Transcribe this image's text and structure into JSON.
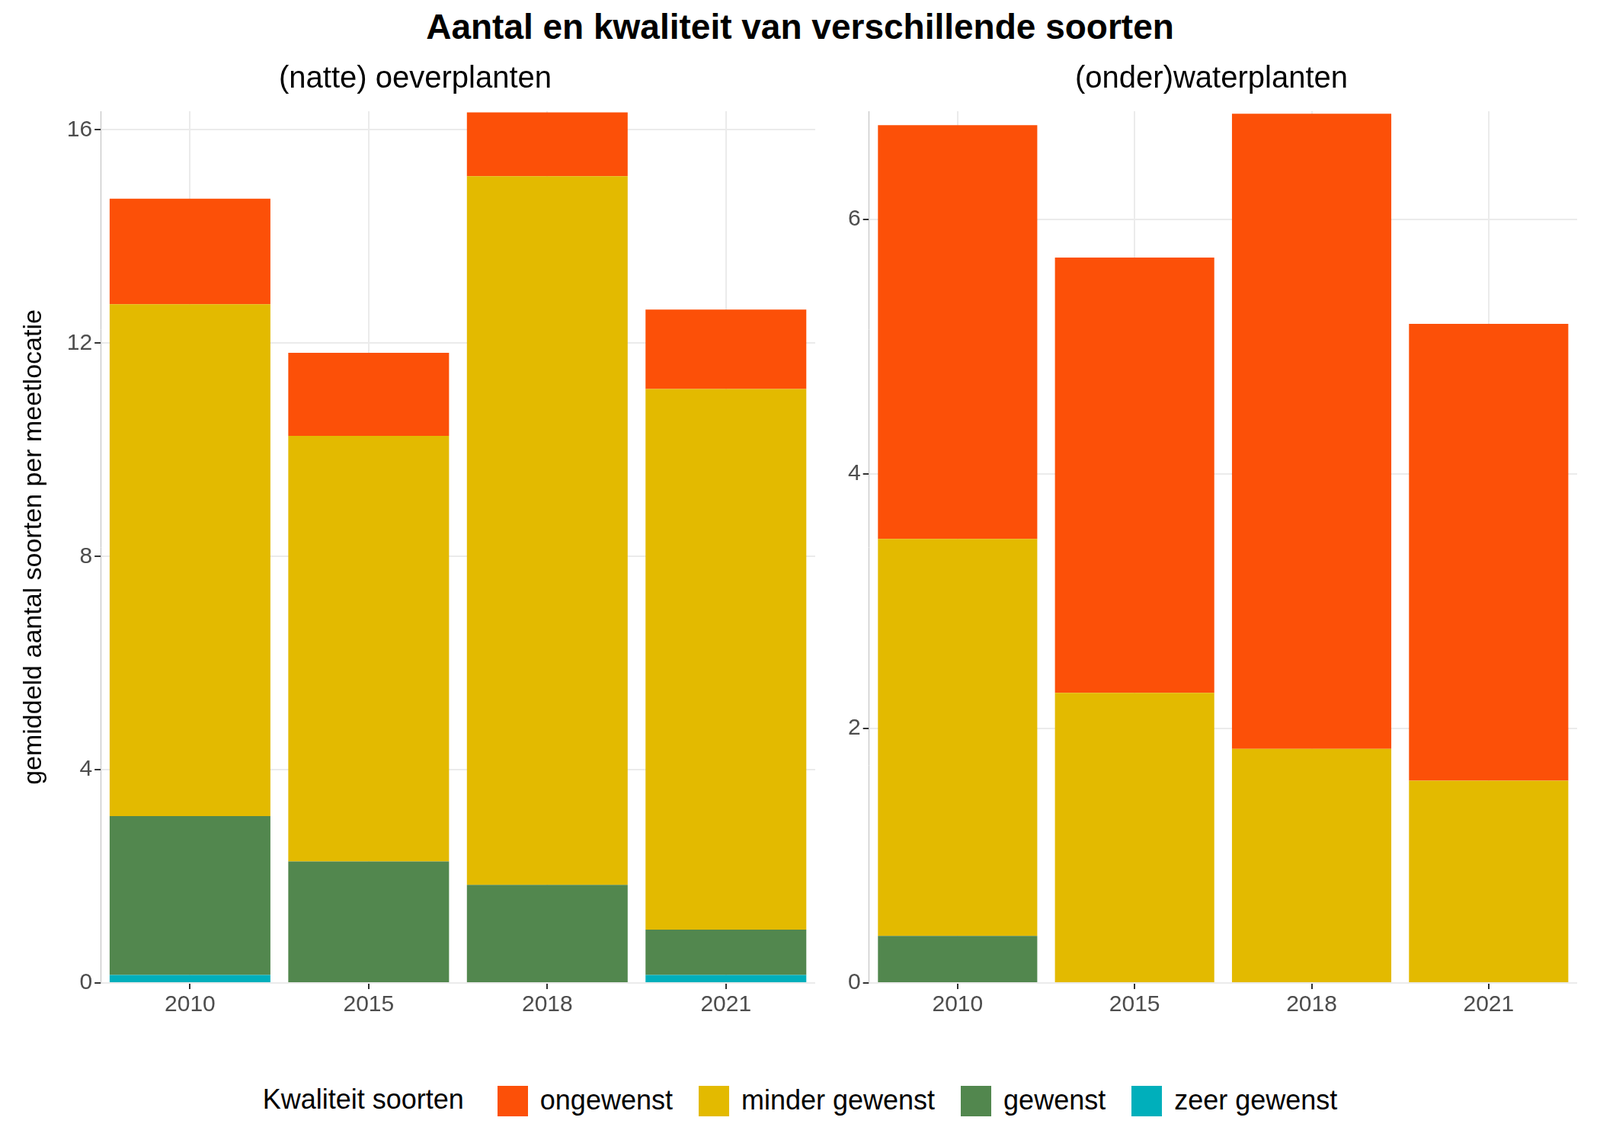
{
  "title": "Aantal en kwaliteit van verschillende soorten",
  "legend_title": "Kwaliteit soorten",
  "chart_data": [
    {
      "type": "bar",
      "title": "(natte) oeverplanten",
      "ylabel": "gemiddeld aantal soorten per meetlocatie",
      "categories": [
        "2010",
        "2015",
        "2018",
        "2021"
      ],
      "stacked": true,
      "grid": true,
      "legend": "bottom",
      "ylim": [
        0,
        16.35
      ],
      "yticks": [
        0,
        4,
        8,
        12,
        16
      ],
      "series": [
        {
          "name": "ongewenst",
          "color": "#fc5008",
          "values": [
            1.98,
            1.56,
            1.2,
            1.49
          ]
        },
        {
          "name": "minder gewenst",
          "color": "#e3ba00",
          "values": [
            9.6,
            7.98,
            13.29,
            10.14
          ]
        },
        {
          "name": "gewenst",
          "color": "#52874e",
          "values": [
            2.98,
            2.28,
            1.84,
            0.85
          ]
        },
        {
          "name": "zeer gewenst",
          "color": "#00afbb",
          "values": [
            0.15,
            0,
            0,
            0.15
          ]
        }
      ]
    },
    {
      "type": "bar",
      "title": "(onder)waterplanten",
      "categories": [
        "2010",
        "2015",
        "2018",
        "2021"
      ],
      "stacked": true,
      "grid": true,
      "legend": "bottom",
      "ylim": [
        0,
        6.85
      ],
      "yticks": [
        0,
        2,
        4,
        6
      ],
      "series": [
        {
          "name": "ongewenst",
          "color": "#fc5008",
          "values": [
            3.25,
            3.42,
            4.99,
            3.59
          ]
        },
        {
          "name": "minder gewenst",
          "color": "#e3ba00",
          "values": [
            3.12,
            2.28,
            1.84,
            1.59
          ]
        },
        {
          "name": "gewenst",
          "color": "#52874e",
          "values": [
            0.37,
            0,
            0,
            0
          ]
        },
        {
          "name": "zeer gewenst",
          "color": "#00afbb",
          "values": [
            0,
            0,
            0,
            0
          ]
        }
      ]
    }
  ]
}
